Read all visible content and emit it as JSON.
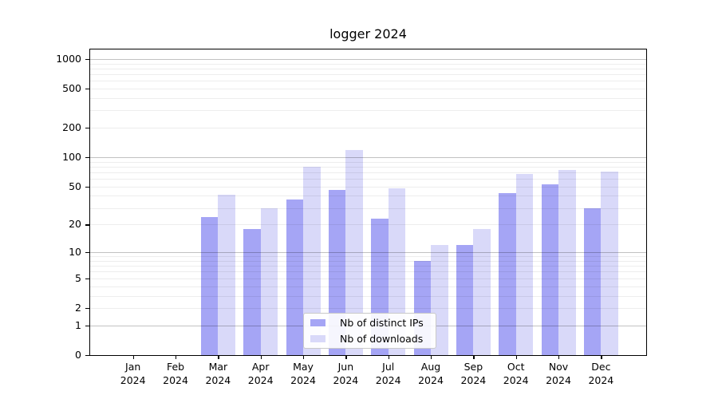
{
  "chart_data": {
    "type": "bar",
    "title": "logger 2024",
    "categories": [
      "Jan",
      "Feb",
      "Mar",
      "Apr",
      "May",
      "Jun",
      "Jul",
      "Aug",
      "Sep",
      "Oct",
      "Nov",
      "Dec"
    ],
    "category_year": "2024",
    "series": [
      {
        "name": "Nb of distinct IPs",
        "color": "#a5a5f5",
        "values": [
          0,
          0,
          24,
          18,
          37,
          46,
          23,
          8,
          12,
          43,
          53,
          30
        ]
      },
      {
        "name": "Nb of downloads",
        "color": "#d9d9f9",
        "values": [
          0,
          0,
          41,
          30,
          80,
          119,
          48,
          12,
          18,
          67,
          74,
          72
        ]
      }
    ],
    "y_ticks": [
      0,
      1,
      2,
      5,
      10,
      20,
      50,
      100,
      200,
      500,
      1000
    ],
    "y_scale": "log10(1+v)",
    "ylim": [
      0,
      1250
    ],
    "grid": true,
    "legend_position": "lower center inside"
  }
}
